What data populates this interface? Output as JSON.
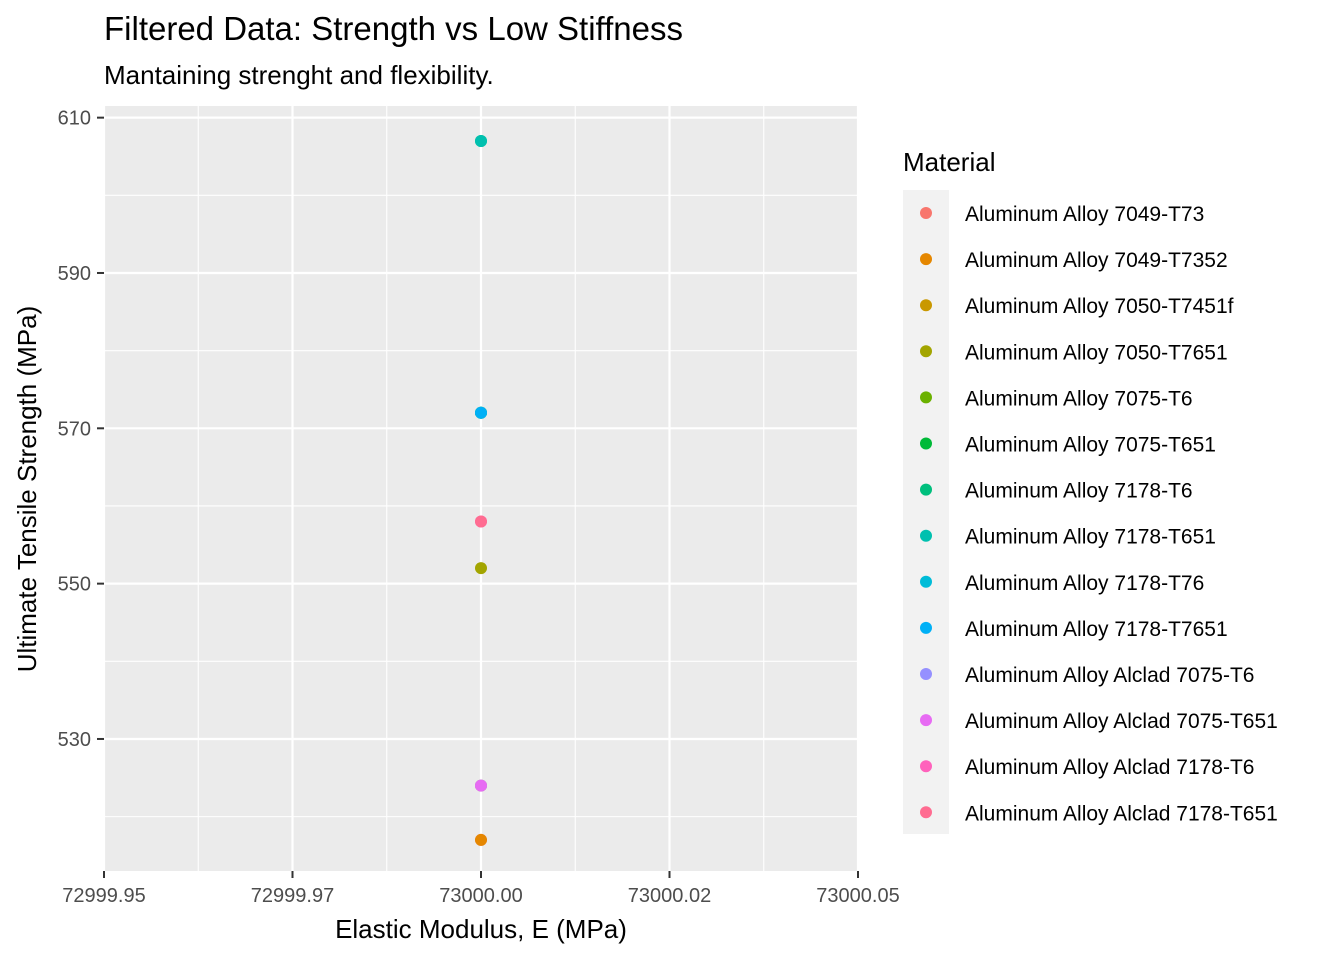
{
  "chart_data": {
    "type": "scatter",
    "title": "Filtered Data: Strength vs Low Stiffness",
    "subtitle": "Mantaining strenght and flexibility.",
    "xlabel": "Elastic Modulus, E (MPa)",
    "ylabel": "Ultimate Tensile Strength (MPa)",
    "xlim": [
      72999.95,
      73000.05
    ],
    "ylim": [
      513,
      611.5
    ],
    "x_ticks": [
      72999.95,
      72999.975,
      73000.0,
      73000.025,
      73000.05
    ],
    "x_tick_labels": [
      "72999.95",
      "72999.97",
      "73000.00",
      "73000.02",
      "73000.05"
    ],
    "y_ticks": [
      530,
      550,
      570,
      590,
      610
    ],
    "y_tick_labels": [
      "530",
      "550",
      "570",
      "590",
      "610"
    ],
    "grid": true,
    "legend_title": "Material",
    "legend_position": "right",
    "series": [
      {
        "name": "Aluminum Alloy 7049-T73",
        "color": "#F8766D",
        "x": [
          73000
        ],
        "y": [
          517
        ]
      },
      {
        "name": "Aluminum Alloy 7049-T7352",
        "color": "#E58700",
        "x": [
          73000
        ],
        "y": [
          517
        ]
      },
      {
        "name": "Aluminum Alloy 7050-T7451f",
        "color": "#C99800",
        "x": [
          73000
        ],
        "y": [
          524
        ]
      },
      {
        "name": "Aluminum Alloy 7050-T7651",
        "color": "#A3A500",
        "x": [
          73000
        ],
        "y": [
          552
        ]
      },
      {
        "name": "Aluminum Alloy 7075-T6",
        "color": "#6BB100",
        "x": [
          73000
        ],
        "y": [
          572
        ]
      },
      {
        "name": "Aluminum Alloy 7075-T651",
        "color": "#00BA38",
        "x": [
          73000
        ],
        "y": [
          572
        ]
      },
      {
        "name": "Aluminum Alloy 7178-T6",
        "color": "#00BF7D",
        "x": [
          73000
        ],
        "y": [
          607
        ]
      },
      {
        "name": "Aluminum Alloy 7178-T651",
        "color": "#00C0AF",
        "x": [
          73000
        ],
        "y": [
          607
        ]
      },
      {
        "name": "Aluminum Alloy 7178-T76",
        "color": "#00BCD8",
        "x": [
          73000
        ],
        "y": [
          572
        ]
      },
      {
        "name": "Aluminum Alloy 7178-T7651",
        "color": "#00B0F6",
        "x": [
          73000
        ],
        "y": [
          572
        ]
      },
      {
        "name": "Aluminum Alloy Alclad 7075-T6",
        "color": "#9590FF",
        "x": [
          73000
        ],
        "y": [
          524
        ]
      },
      {
        "name": "Aluminum Alloy Alclad 7075-T651",
        "color": "#E76BF3",
        "x": [
          73000
        ],
        "y": [
          524
        ]
      },
      {
        "name": "Aluminum Alloy Alclad 7178-T6",
        "color": "#FF62BC",
        "x": [
          73000
        ],
        "y": [
          558
        ]
      },
      {
        "name": "Aluminum Alloy Alclad 7178-T651",
        "color": "#FF6C91",
        "x": [
          73000
        ],
        "y": [
          558
        ]
      }
    ]
  }
}
